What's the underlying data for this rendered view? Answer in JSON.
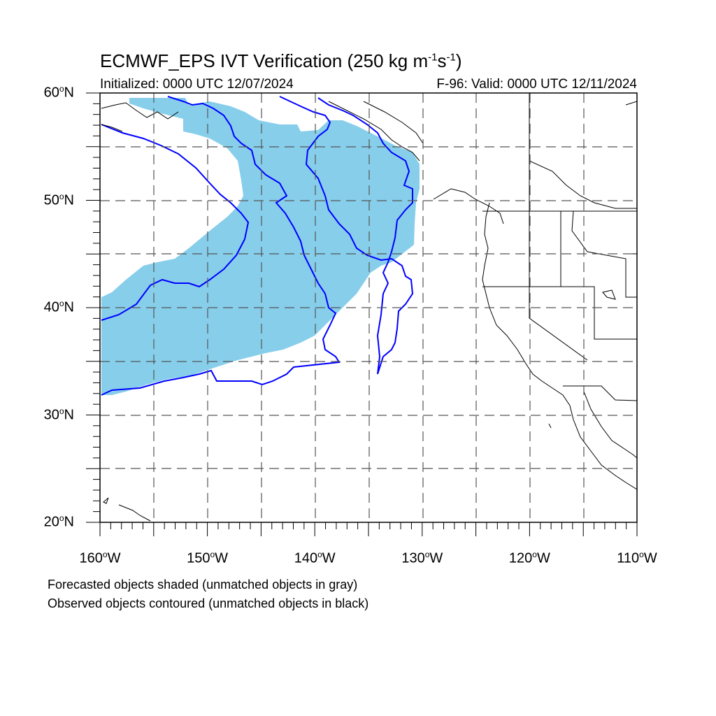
{
  "header": {
    "title_main": "ECMWF_EPS IVT Verification (250 kg m",
    "title_exp1": "-1",
    "title_mid": "s",
    "title_exp2": "-1",
    "title_end": ")",
    "initialized": "Initialized: 0000 UTC 12/07/2024",
    "valid": "F-96: Valid: 0000 UTC 12/11/2024"
  },
  "axes": {
    "degree_symbol": "o",
    "lat_labels": [
      {
        "text": "60",
        "hem": "N",
        "value": 60
      },
      {
        "text": "50",
        "hem": "N",
        "value": 50
      },
      {
        "text": "40",
        "hem": "N",
        "value": 40
      },
      {
        "text": "30",
        "hem": "N",
        "value": 30
      },
      {
        "text": "20",
        "hem": "N",
        "value": 20
      }
    ],
    "lon_labels": [
      {
        "text": "160",
        "hem": "W",
        "value": -160
      },
      {
        "text": "150",
        "hem": "W",
        "value": -150
      },
      {
        "text": "140",
        "hem": "W",
        "value": -140
      },
      {
        "text": "130",
        "hem": "W",
        "value": -130
      },
      {
        "text": "120",
        "hem": "W",
        "value": -120
      },
      {
        "text": "110",
        "hem": "W",
        "value": -110
      }
    ],
    "lat_range": [
      20,
      60
    ],
    "lon_range": [
      -160,
      -110
    ],
    "grid": "dashed every 5 degrees"
  },
  "legend": {
    "line1": "Forecasted objects shaded (unmatched objects in gray)",
    "line2": "Observed objects contoured (unmatched objects in black)"
  },
  "colors": {
    "forecast_fill": "#87ceeb",
    "observed_contour": "#0000ff",
    "coastline": "#000000",
    "grid": "#555555"
  }
}
